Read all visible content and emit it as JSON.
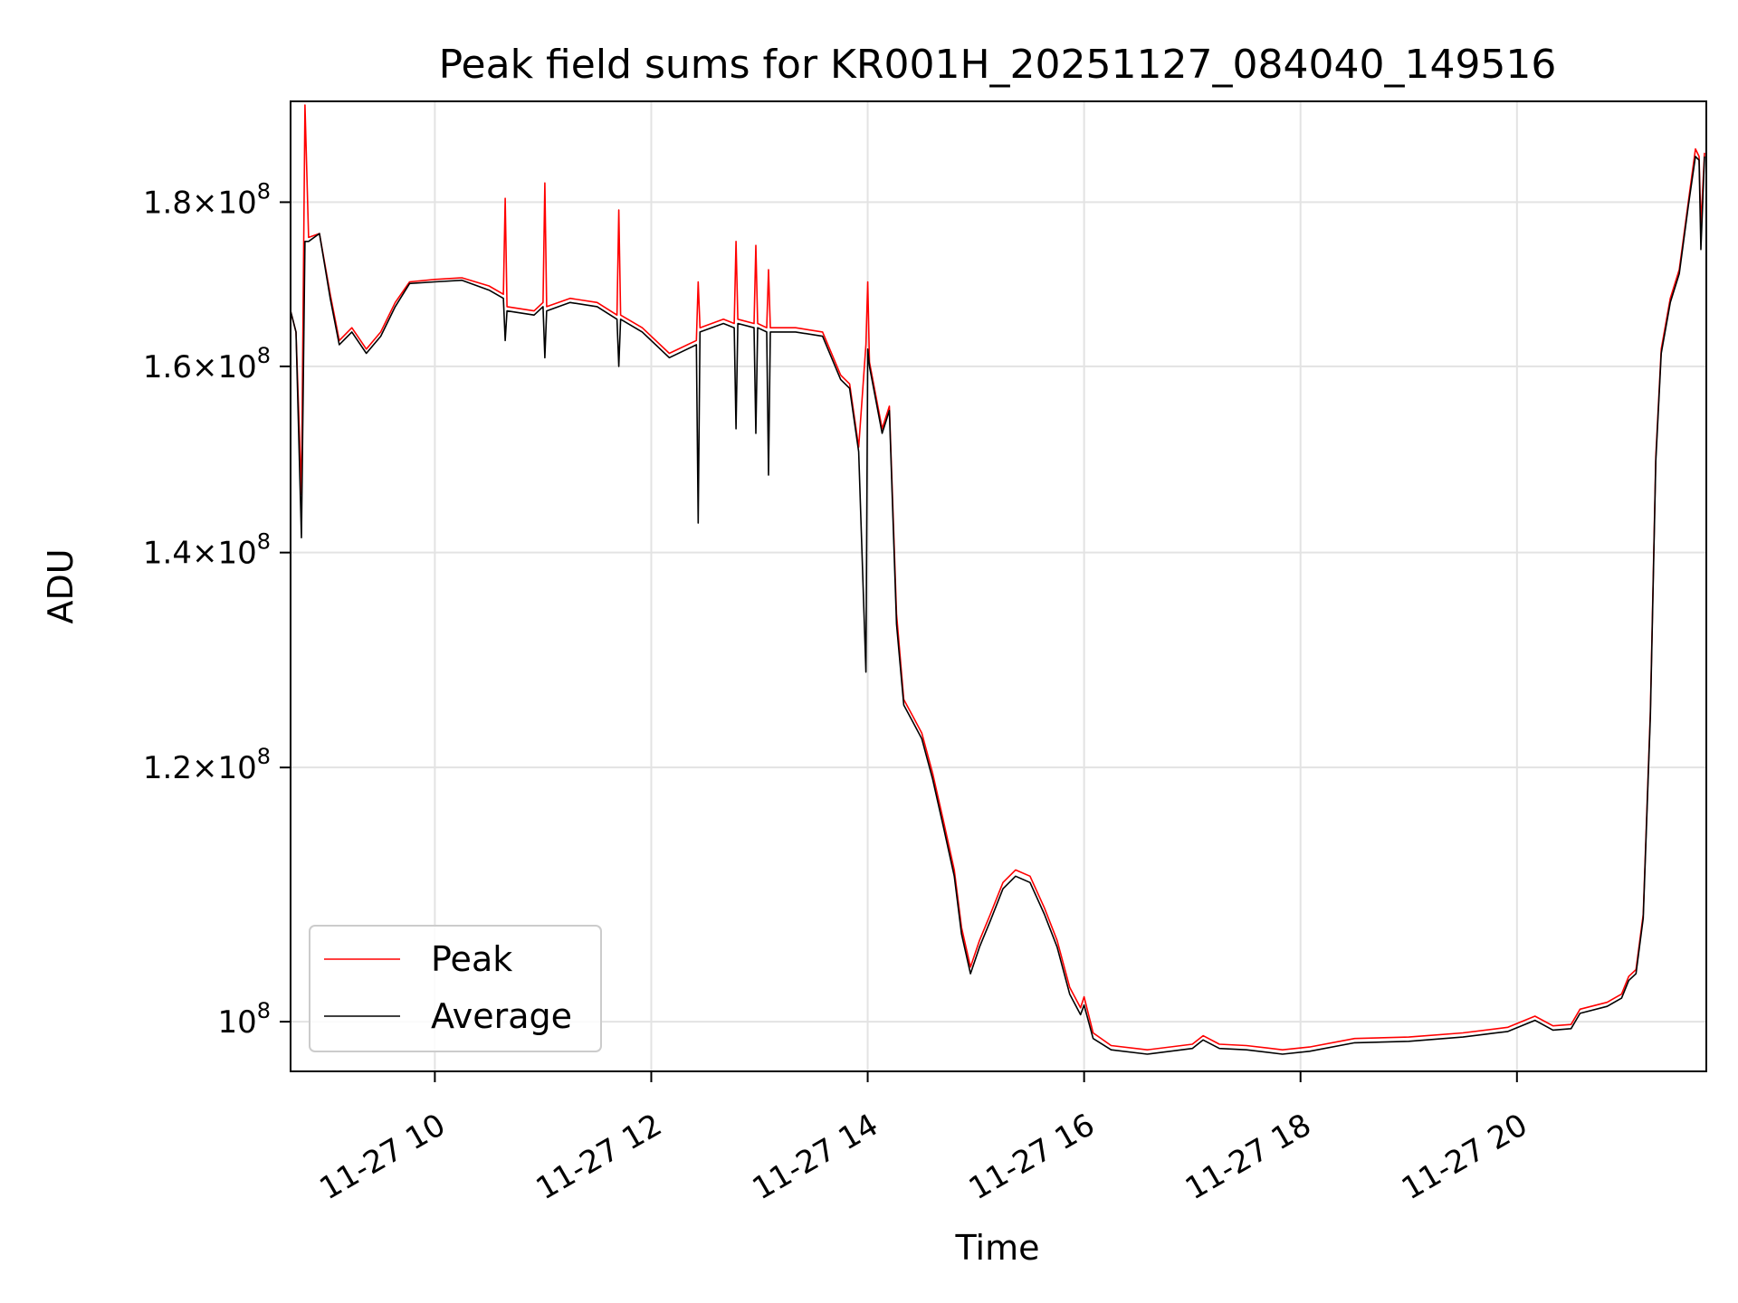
{
  "chart_data": {
    "type": "line",
    "title": "Peak field sums for KR001H_20251127_084040_149516",
    "xlabel": "Time",
    "ylabel": "ADU",
    "y_scale": "log",
    "grid": true,
    "legend_position": "lower-left",
    "xlim": [
      "2025-11-27 08:40",
      "2025-11-27 21:45"
    ],
    "ylim": [
      96500000,
      193500000
    ],
    "x_ticks": [
      {
        "value": "2025-11-27 10:00",
        "label": "11-27 10"
      },
      {
        "value": "2025-11-27 12:00",
        "label": "11-27 12"
      },
      {
        "value": "2025-11-27 14:00",
        "label": "11-27 14"
      },
      {
        "value": "2025-11-27 16:00",
        "label": "11-27 16"
      },
      {
        "value": "2025-11-27 18:00",
        "label": "11-27 18"
      },
      {
        "value": "2025-11-27 20:00",
        "label": "11-27 20"
      }
    ],
    "y_ticks": [
      {
        "value": 180000000,
        "mantissa": "1.8",
        "base": "10",
        "exp": "8"
      },
      {
        "value": 160000000,
        "mantissa": "1.6",
        "base": "10",
        "exp": "8"
      },
      {
        "value": 140000000,
        "mantissa": "1.4",
        "base": "10",
        "exp": "8"
      },
      {
        "value": 120000000,
        "mantissa": "1.2",
        "base": "10",
        "exp": "8"
      },
      {
        "value": 100000000,
        "mantissa": "",
        "base": "10",
        "exp": "8"
      }
    ],
    "series": [
      {
        "name": "Peak",
        "color": "#ff0000",
        "points": [
          [
            "2025-11-27 08:40",
            166500000
          ],
          [
            "2025-11-27 08:43",
            164000000
          ],
          [
            "2025-11-27 08:46",
            146000000
          ],
          [
            "2025-11-27 08:48",
            193000000
          ],
          [
            "2025-11-27 08:50",
            175500000
          ],
          [
            "2025-11-27 08:56",
            176000000
          ],
          [
            "2025-11-27 09:02",
            168500000
          ],
          [
            "2025-11-27 09:07",
            163000000
          ],
          [
            "2025-11-27 09:14",
            164500000
          ],
          [
            "2025-11-27 09:22",
            162000000
          ],
          [
            "2025-11-27 09:30",
            164000000
          ],
          [
            "2025-11-27 09:38",
            167500000
          ],
          [
            "2025-11-27 09:46",
            170000000
          ],
          [
            "2025-11-27 10:00",
            170300000
          ],
          [
            "2025-11-27 10:15",
            170500000
          ],
          [
            "2025-11-27 10:30",
            169500000
          ],
          [
            "2025-11-27 10:38",
            168500000
          ],
          [
            "2025-11-27 10:39",
            180500000
          ],
          [
            "2025-11-27 10:40",
            167000000
          ],
          [
            "2025-11-27 10:55",
            166500000
          ],
          [
            "2025-11-27 11:00",
            167500000
          ],
          [
            "2025-11-27 11:01",
            182500000
          ],
          [
            "2025-11-27 11:02",
            167000000
          ],
          [
            "2025-11-27 11:15",
            168000000
          ],
          [
            "2025-11-27 11:30",
            167500000
          ],
          [
            "2025-11-27 11:41",
            166000000
          ],
          [
            "2025-11-27 11:42",
            179000000
          ],
          [
            "2025-11-27 11:43",
            166000000
          ],
          [
            "2025-11-27 11:55",
            164500000
          ],
          [
            "2025-11-27 12:10",
            161500000
          ],
          [
            "2025-11-27 12:25",
            163000000
          ],
          [
            "2025-11-27 12:26",
            170000000
          ],
          [
            "2025-11-27 12:27",
            164500000
          ],
          [
            "2025-11-27 12:40",
            165500000
          ],
          [
            "2025-11-27 12:46",
            165000000
          ],
          [
            "2025-11-27 12:47",
            175000000
          ],
          [
            "2025-11-27 12:48",
            165500000
          ],
          [
            "2025-11-27 12:57",
            165000000
          ],
          [
            "2025-11-27 12:58",
            174500000
          ],
          [
            "2025-11-27 12:59",
            165000000
          ],
          [
            "2025-11-27 13:04",
            164500000
          ],
          [
            "2025-11-27 13:05",
            171500000
          ],
          [
            "2025-11-27 13:06",
            164500000
          ],
          [
            "2025-11-27 13:20",
            164500000
          ],
          [
            "2025-11-27 13:35",
            164000000
          ],
          [
            "2025-11-27 13:45",
            159000000
          ],
          [
            "2025-11-27 13:50",
            158000000
          ],
          [
            "2025-11-27 13:55",
            151000000
          ],
          [
            "2025-11-27 13:59",
            162500000
          ],
          [
            "2025-11-27 14:00",
            170000000
          ],
          [
            "2025-11-27 14:01",
            160500000
          ],
          [
            "2025-11-27 14:08",
            153000000
          ],
          [
            "2025-11-27 14:12",
            155500000
          ],
          [
            "2025-11-27 14:16",
            134000000
          ],
          [
            "2025-11-27 14:20",
            126000000
          ],
          [
            "2025-11-27 14:25",
            124500000
          ],
          [
            "2025-11-27 14:30",
            123000000
          ],
          [
            "2025-11-27 14:36",
            119500000
          ],
          [
            "2025-11-27 14:42",
            115500000
          ],
          [
            "2025-11-27 14:48",
            111500000
          ],
          [
            "2025-11-27 14:52",
            107000000
          ],
          [
            "2025-11-27 14:57",
            104000000
          ],
          [
            "2025-11-27 15:02",
            106000000
          ],
          [
            "2025-11-27 15:08",
            108000000
          ],
          [
            "2025-11-27 15:15",
            110500000
          ],
          [
            "2025-11-27 15:22",
            111500000
          ],
          [
            "2025-11-27 15:30",
            111000000
          ],
          [
            "2025-11-27 15:38",
            108500000
          ],
          [
            "2025-11-27 15:45",
            106000000
          ],
          [
            "2025-11-27 15:52",
            102500000
          ],
          [
            "2025-11-27 15:58",
            101000000
          ],
          [
            "2025-11-27 16:00",
            101800000
          ],
          [
            "2025-11-27 16:05",
            99200000
          ],
          [
            "2025-11-27 16:15",
            98300000
          ],
          [
            "2025-11-27 16:35",
            98000000
          ],
          [
            "2025-11-27 17:00",
            98400000
          ],
          [
            "2025-11-27 17:06",
            99000000
          ],
          [
            "2025-11-27 17:15",
            98400000
          ],
          [
            "2025-11-27 17:30",
            98300000
          ],
          [
            "2025-11-27 17:50",
            98000000
          ],
          [
            "2025-11-27 18:05",
            98200000
          ],
          [
            "2025-11-27 18:30",
            98800000
          ],
          [
            "2025-11-27 19:00",
            98900000
          ],
          [
            "2025-11-27 19:30",
            99200000
          ],
          [
            "2025-11-27 19:55",
            99600000
          ],
          [
            "2025-11-27 20:10",
            100400000
          ],
          [
            "2025-11-27 20:20",
            99700000
          ],
          [
            "2025-11-27 20:30",
            99800000
          ],
          [
            "2025-11-27 20:35",
            100900000
          ],
          [
            "2025-11-27 20:50",
            101400000
          ],
          [
            "2025-11-27 20:58",
            102000000
          ],
          [
            "2025-11-27 21:02",
            103300000
          ],
          [
            "2025-11-27 21:06",
            103800000
          ],
          [
            "2025-11-27 21:10",
            108000000
          ],
          [
            "2025-11-27 21:14",
            125000000
          ],
          [
            "2025-11-27 21:17",
            150000000
          ],
          [
            "2025-11-27 21:20",
            162000000
          ],
          [
            "2025-11-27 21:25",
            168000000
          ],
          [
            "2025-11-27 21:30",
            171500000
          ],
          [
            "2025-11-27 21:35",
            180000000
          ],
          [
            "2025-11-27 21:39",
            187000000
          ],
          [
            "2025-11-27 21:41",
            186000000
          ],
          [
            "2025-11-27 21:42",
            177000000
          ],
          [
            "2025-11-27 21:44",
            186500000
          ]
        ]
      },
      {
        "name": "Average",
        "color": "#000000",
        "points": [
          [
            "2025-11-27 08:40",
            166500000
          ],
          [
            "2025-11-27 08:43",
            164000000
          ],
          [
            "2025-11-27 08:46",
            141500000
          ],
          [
            "2025-11-27 08:48",
            175000000
          ],
          [
            "2025-11-27 08:50",
            175000000
          ],
          [
            "2025-11-27 08:56",
            176000000
          ],
          [
            "2025-11-27 09:02",
            168000000
          ],
          [
            "2025-11-27 09:07",
            162500000
          ],
          [
            "2025-11-27 09:14",
            164000000
          ],
          [
            "2025-11-27 09:22",
            161500000
          ],
          [
            "2025-11-27 09:30",
            163500000
          ],
          [
            "2025-11-27 09:38",
            167000000
          ],
          [
            "2025-11-27 09:46",
            169800000
          ],
          [
            "2025-11-27 10:00",
            170000000
          ],
          [
            "2025-11-27 10:15",
            170200000
          ],
          [
            "2025-11-27 10:30",
            169000000
          ],
          [
            "2025-11-27 10:38",
            168000000
          ],
          [
            "2025-11-27 10:39",
            163000000
          ],
          [
            "2025-11-27 10:40",
            166500000
          ],
          [
            "2025-11-27 10:55",
            166000000
          ],
          [
            "2025-11-27 11:00",
            167000000
          ],
          [
            "2025-11-27 11:01",
            161000000
          ],
          [
            "2025-11-27 11:02",
            166500000
          ],
          [
            "2025-11-27 11:15",
            167500000
          ],
          [
            "2025-11-27 11:30",
            167000000
          ],
          [
            "2025-11-27 11:41",
            165500000
          ],
          [
            "2025-11-27 11:42",
            160000000
          ],
          [
            "2025-11-27 11:43",
            165500000
          ],
          [
            "2025-11-27 11:55",
            164000000
          ],
          [
            "2025-11-27 12:10",
            161000000
          ],
          [
            "2025-11-27 12:25",
            162500000
          ],
          [
            "2025-11-27 12:26",
            143000000
          ],
          [
            "2025-11-27 12:27",
            164000000
          ],
          [
            "2025-11-27 12:40",
            165000000
          ],
          [
            "2025-11-27 12:46",
            164500000
          ],
          [
            "2025-11-27 12:47",
            153000000
          ],
          [
            "2025-11-27 12:48",
            165000000
          ],
          [
            "2025-11-27 12:57",
            164500000
          ],
          [
            "2025-11-27 12:58",
            152500000
          ],
          [
            "2025-11-27 12:59",
            164500000
          ],
          [
            "2025-11-27 13:04",
            164000000
          ],
          [
            "2025-11-27 13:05",
            148000000
          ],
          [
            "2025-11-27 13:06",
            164000000
          ],
          [
            "2025-11-27 13:20",
            164000000
          ],
          [
            "2025-11-27 13:35",
            163500000
          ],
          [
            "2025-11-27 13:45",
            158500000
          ],
          [
            "2025-11-27 13:50",
            157500000
          ],
          [
            "2025-11-27 13:55",
            150500000
          ],
          [
            "2025-11-27 13:59",
            128500000
          ],
          [
            "2025-11-27 14:00",
            162000000
          ],
          [
            "2025-11-27 14:01",
            160000000
          ],
          [
            "2025-11-27 14:08",
            152500000
          ],
          [
            "2025-11-27 14:12",
            155000000
          ],
          [
            "2025-11-27 14:16",
            133000000
          ],
          [
            "2025-11-27 14:20",
            125500000
          ],
          [
            "2025-11-27 14:25",
            124000000
          ],
          [
            "2025-11-27 14:30",
            122500000
          ],
          [
            "2025-11-27 14:36",
            119000000
          ],
          [
            "2025-11-27 14:42",
            115000000
          ],
          [
            "2025-11-27 14:48",
            111000000
          ],
          [
            "2025-11-27 14:52",
            106500000
          ],
          [
            "2025-11-27 14:57",
            103500000
          ],
          [
            "2025-11-27 15:02",
            105500000
          ],
          [
            "2025-11-27 15:08",
            107500000
          ],
          [
            "2025-11-27 15:15",
            110000000
          ],
          [
            "2025-11-27 15:22",
            111000000
          ],
          [
            "2025-11-27 15:30",
            110500000
          ],
          [
            "2025-11-27 15:38",
            108000000
          ],
          [
            "2025-11-27 15:45",
            105500000
          ],
          [
            "2025-11-27 15:52",
            102000000
          ],
          [
            "2025-11-27 15:58",
            100500000
          ],
          [
            "2025-11-27 16:00",
            101200000
          ],
          [
            "2025-11-27 16:05",
            98800000
          ],
          [
            "2025-11-27 16:15",
            98000000
          ],
          [
            "2025-11-27 16:35",
            97700000
          ],
          [
            "2025-11-27 17:00",
            98100000
          ],
          [
            "2025-11-27 17:06",
            98700000
          ],
          [
            "2025-11-27 17:15",
            98100000
          ],
          [
            "2025-11-27 17:30",
            98000000
          ],
          [
            "2025-11-27 17:50",
            97700000
          ],
          [
            "2025-11-27 18:05",
            97900000
          ],
          [
            "2025-11-27 18:30",
            98500000
          ],
          [
            "2025-11-27 19:00",
            98600000
          ],
          [
            "2025-11-27 19:30",
            98900000
          ],
          [
            "2025-11-27 19:55",
            99300000
          ],
          [
            "2025-11-27 20:10",
            100100000
          ],
          [
            "2025-11-27 20:20",
            99400000
          ],
          [
            "2025-11-27 20:30",
            99500000
          ],
          [
            "2025-11-27 20:35",
            100600000
          ],
          [
            "2025-11-27 20:50",
            101100000
          ],
          [
            "2025-11-27 20:58",
            101700000
          ],
          [
            "2025-11-27 21:02",
            103000000
          ],
          [
            "2025-11-27 21:06",
            103500000
          ],
          [
            "2025-11-27 21:10",
            107700000
          ],
          [
            "2025-11-27 21:14",
            124500000
          ],
          [
            "2025-11-27 21:17",
            149500000
          ],
          [
            "2025-11-27 21:20",
            161500000
          ],
          [
            "2025-11-27 21:25",
            167500000
          ],
          [
            "2025-11-27 21:30",
            171000000
          ],
          [
            "2025-11-27 21:35",
            179500000
          ],
          [
            "2025-11-27 21:39",
            186000000
          ],
          [
            "2025-11-27 21:41",
            185500000
          ],
          [
            "2025-11-27 21:42",
            174000000
          ],
          [
            "2025-11-27 21:44",
            186000000
          ]
        ]
      }
    ]
  }
}
